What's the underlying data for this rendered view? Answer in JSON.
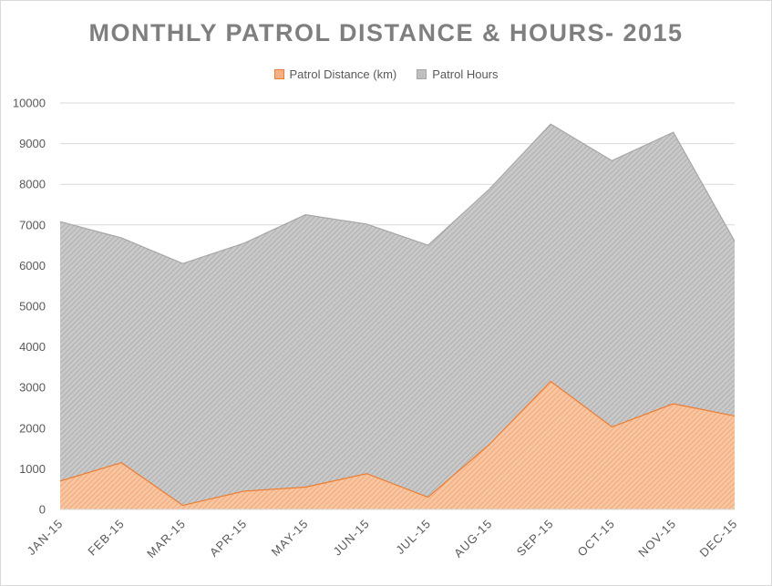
{
  "chart_data": {
    "type": "area",
    "title": "MONTHLY PATROL DISTANCE & HOURS- 2015",
    "categories": [
      "JAN-15",
      "FEB-15",
      "MAR-15",
      "APR-15",
      "MAY-15",
      "JUN-15",
      "JUL-15",
      "AUG-15",
      "SEP-15",
      "OCT-15",
      "NOV-15",
      "DEC-15"
    ],
    "series": [
      {
        "name": "Patrol Distance (km)",
        "color": "#f4b183",
        "edge_color": "#ed7d31",
        "values": [
          700,
          1150,
          100,
          450,
          550,
          880,
          300,
          1600,
          3150,
          2030,
          2600,
          2300
        ]
      },
      {
        "name": "Patrol Hours",
        "color": "#bfbfbf",
        "edge_color": "#a6a6a6",
        "values": [
          7080,
          6680,
          6050,
          6550,
          7250,
          7020,
          6500,
          7880,
          9480,
          8580,
          9280,
          6600
        ]
      }
    ],
    "stacked": false,
    "ylim": [
      0,
      10000
    ],
    "yticks": [
      "0",
      "1000",
      "2000",
      "3000",
      "4000",
      "5000",
      "6000",
      "7000",
      "8000",
      "9000",
      "10000"
    ],
    "grid": true,
    "legend_position": "top"
  }
}
